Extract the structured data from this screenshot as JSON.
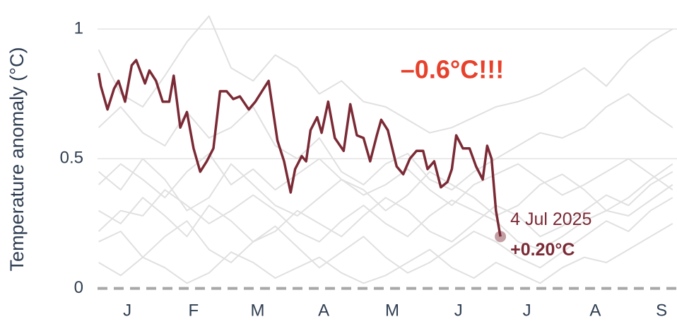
{
  "chart_data": {
    "type": "line",
    "y_label": "Temperature anomaly (°C)",
    "annotation": "–0.6°C!!!",
    "annotation_color": "#e8412b",
    "end_label": {
      "date": "4 Jul 2025",
      "value_label": "+0.20°C"
    },
    "xlim": [
      2.5,
      265
    ],
    "xticks": [
      {
        "value": 16,
        "label": "J"
      },
      {
        "value": 46,
        "label": "F"
      },
      {
        "value": 75,
        "label": "M"
      },
      {
        "value": 105,
        "label": "A"
      },
      {
        "value": 136,
        "label": "M"
      },
      {
        "value": 166,
        "label": "J"
      },
      {
        "value": 197,
        "label": "J"
      },
      {
        "value": 228,
        "label": "A"
      },
      {
        "value": 258,
        "label": "S"
      }
    ],
    "ylim": [
      -0.02,
      1.09
    ],
    "yticks": [
      0,
      0.5,
      1
    ],
    "grid": true,
    "x": [
      3,
      13,
      23,
      33,
      43,
      53,
      63,
      73,
      83,
      93,
      103,
      113,
      123,
      133,
      143,
      153,
      163,
      173,
      183,
      193,
      203,
      213,
      223,
      233,
      243,
      253,
      263
    ],
    "series": [
      {
        "color": "#e0e0e0",
        "values": [
          0.92,
          0.75,
          0.7,
          0.82,
          0.95,
          1.05,
          0.85,
          0.8,
          0.9,
          0.85,
          0.75,
          0.8,
          0.72,
          0.7,
          0.65,
          0.6,
          0.62,
          0.66,
          0.7,
          0.72,
          0.75,
          0.8,
          0.85,
          0.78,
          0.88,
          0.95,
          1.0
        ]
      },
      {
        "color": "#e0e0e0",
        "values": [
          0.62,
          0.7,
          0.6,
          0.55,
          0.68,
          0.58,
          0.62,
          0.7,
          0.55,
          0.5,
          0.58,
          0.45,
          0.4,
          0.48,
          0.52,
          0.42,
          0.38,
          0.45,
          0.5,
          0.55,
          0.6,
          0.58,
          0.62,
          0.7,
          0.75,
          0.68,
          0.62
        ]
      },
      {
        "color": "#e0e0e0",
        "values": [
          0.45,
          0.38,
          0.5,
          0.42,
          0.3,
          0.35,
          0.48,
          0.4,
          0.32,
          0.28,
          0.35,
          0.42,
          0.38,
          0.3,
          0.36,
          0.45,
          0.4,
          0.35,
          0.28,
          0.32,
          0.4,
          0.44,
          0.38,
          0.3,
          0.35,
          0.42,
          0.48
        ]
      },
      {
        "color": "#e0e0e0",
        "values": [
          0.3,
          0.25,
          0.35,
          0.28,
          0.2,
          0.32,
          0.26,
          0.18,
          0.22,
          0.3,
          0.25,
          0.2,
          0.28,
          0.35,
          0.3,
          0.22,
          0.18,
          0.25,
          0.32,
          0.28,
          0.2,
          0.24,
          0.3,
          0.36,
          0.32,
          0.4,
          0.45
        ]
      },
      {
        "color": "#e0e0e0",
        "values": [
          0.18,
          0.22,
          0.12,
          0.2,
          0.26,
          0.15,
          0.1,
          0.18,
          0.24,
          0.16,
          0.08,
          0.14,
          0.2,
          0.12,
          0.06,
          0.1,
          0.16,
          0.22,
          0.18,
          0.12,
          0.08,
          0.14,
          0.2,
          0.26,
          0.22,
          0.3,
          0.35
        ]
      },
      {
        "color": "#e0e0e0",
        "values": [
          0.1,
          0.05,
          0.12,
          0.08,
          0.02,
          0.06,
          0.14,
          0.1,
          0.04,
          0.08,
          0.12,
          0.06,
          0.02,
          0.05,
          0.1,
          0.15,
          0.08,
          0.04,
          0.1,
          0.06,
          0.02,
          0.08,
          0.12,
          0.1,
          0.15,
          0.2,
          0.25
        ]
      },
      {
        "color": "#e0e0e0",
        "values": [
          0.4,
          0.48,
          0.42,
          0.35,
          0.45,
          0.52,
          0.4,
          0.46,
          0.38,
          0.44,
          0.5,
          0.42,
          0.36,
          0.4,
          0.46,
          0.38,
          0.32,
          0.4,
          0.44,
          0.48,
          0.42,
          0.36,
          0.4,
          0.45,
          0.5,
          0.44,
          0.38
        ]
      },
      {
        "color": "#e0e0e0",
        "values": [
          0.22,
          0.3,
          0.28,
          0.38,
          0.32,
          0.25,
          0.3,
          0.36,
          0.3,
          0.22,
          0.18,
          0.26,
          0.32,
          0.25,
          0.2,
          0.28,
          0.34,
          0.3,
          0.26,
          0.18,
          0.15,
          0.2,
          0.26,
          0.3,
          0.28,
          0.34,
          0.4
        ]
      },
      {
        "color": "#7b2a35",
        "x": [
          3,
          4,
          7,
          10,
          12,
          15,
          18,
          20,
          24,
          26,
          29,
          32,
          35,
          37,
          40,
          43,
          46,
          49,
          52,
          55,
          58,
          61,
          64,
          67,
          71,
          74,
          77,
          80,
          84,
          87,
          90,
          92,
          95,
          97,
          99,
          102,
          104,
          107,
          110,
          114,
          117,
          120,
          123,
          126,
          129,
          131,
          134,
          138,
          141,
          144,
          147,
          150,
          152,
          155,
          158,
          161,
          163,
          165,
          168,
          171,
          174,
          177,
          179,
          181,
          183,
          185
        ],
        "values": [
          0.83,
          0.78,
          0.69,
          0.77,
          0.8,
          0.72,
          0.86,
          0.88,
          0.79,
          0.84,
          0.8,
          0.72,
          0.72,
          0.82,
          0.62,
          0.68,
          0.54,
          0.45,
          0.49,
          0.54,
          0.76,
          0.76,
          0.73,
          0.74,
          0.69,
          0.72,
          0.76,
          0.8,
          0.57,
          0.49,
          0.37,
          0.46,
          0.51,
          0.49,
          0.61,
          0.66,
          0.6,
          0.72,
          0.58,
          0.53,
          0.71,
          0.59,
          0.58,
          0.49,
          0.59,
          0.65,
          0.61,
          0.47,
          0.44,
          0.5,
          0.53,
          0.53,
          0.46,
          0.49,
          0.39,
          0.41,
          0.46,
          0.59,
          0.54,
          0.54,
          0.47,
          0.42,
          0.55,
          0.5,
          0.3,
          0.2
        ]
      }
    ]
  }
}
